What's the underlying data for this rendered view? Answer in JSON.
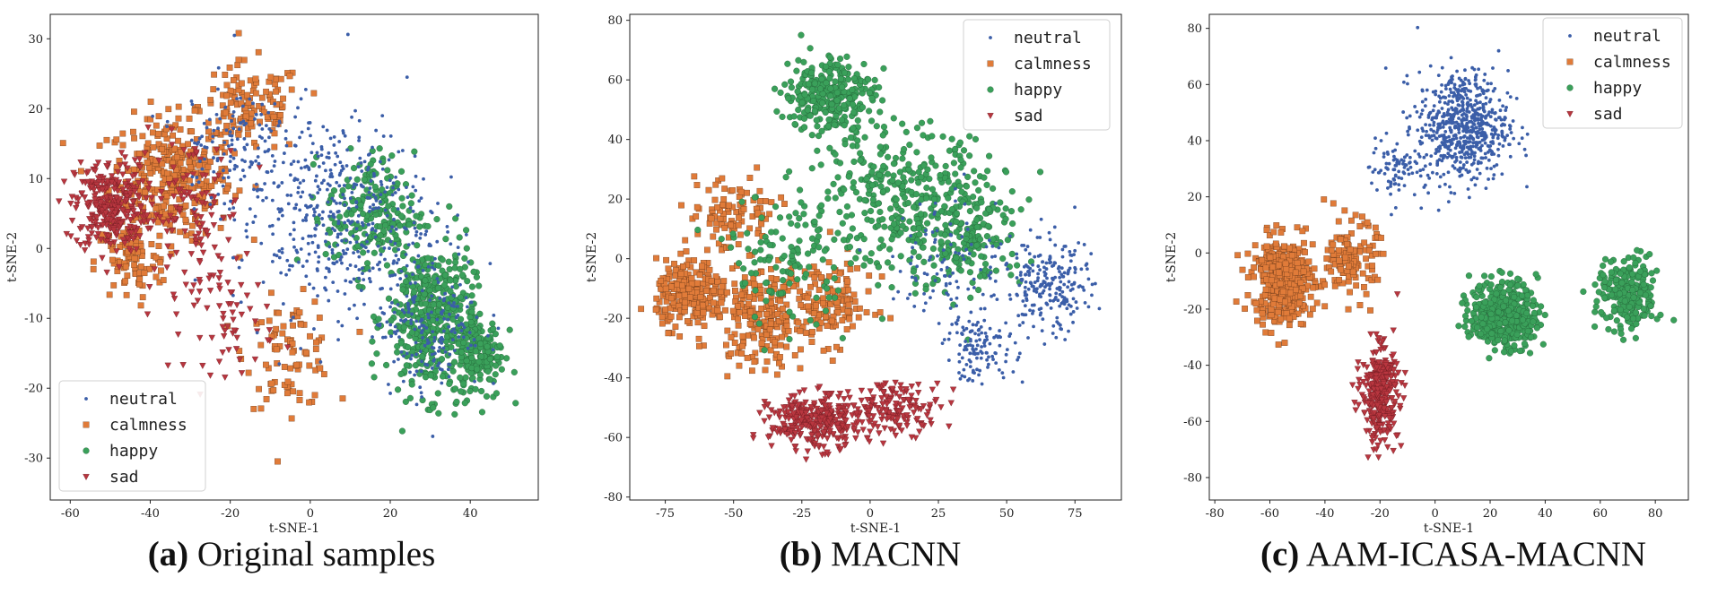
{
  "chart_data": [
    {
      "type": "scatter",
      "caption_prefix": "(a)",
      "caption_title": "Original samples",
      "xlabel": "t-SNE-1",
      "ylabel": "t-SNE-2",
      "xlim": [
        -65,
        57
      ],
      "ylim": [
        -36,
        33.5
      ],
      "xticks": [
        -60,
        -40,
        -20,
        0,
        20,
        40
      ],
      "yticks": [
        -30,
        -20,
        -10,
        0,
        10,
        20,
        30
      ],
      "legend_position": "lower-left",
      "series": [
        {
          "name": "neutral",
          "marker": "dot",
          "color": "#3b5ea8",
          "clusters": [
            [
              5,
              5,
              22,
              13,
              450
            ],
            [
              30,
              -10,
              12,
              10,
              200
            ],
            [
              -20,
              15,
              12,
              8,
              120
            ]
          ]
        },
        {
          "name": "calmness",
          "marker": "square",
          "color": "#e07b39",
          "clusters": [
            [
              -35,
              10,
              14,
              8,
              330
            ],
            [
              -15,
              20,
              12,
              6,
              130
            ],
            [
              -5,
              -15,
              10,
              7,
              90
            ],
            [
              -45,
              -2,
              8,
              5,
              80
            ]
          ]
        },
        {
          "name": "happy",
          "marker": "circle",
          "color": "#3aa05a",
          "clusters": [
            [
              30,
              -10,
              10,
              10,
              420
            ],
            [
              15,
              5,
              10,
              8,
              180
            ],
            [
              42,
              -15,
              6,
              6,
              160
            ]
          ]
        },
        {
          "name": "sad",
          "marker": "triangle",
          "color": "#b8363f",
          "clusters": [
            [
              -50,
              6,
              8,
              6,
              300
            ],
            [
              -30,
              5,
              12,
              10,
              120
            ],
            [
              -20,
              -10,
              10,
              7,
              60
            ]
          ]
        }
      ]
    },
    {
      "type": "scatter",
      "caption_prefix": "(b)",
      "caption_title": "MACNN",
      "xlabel": "t-SNE-1",
      "ylabel": "t-SNE-2",
      "xlim": [
        -88,
        92
      ],
      "ylim": [
        -81,
        82
      ],
      "xticks": [
        -75,
        -50,
        -25,
        0,
        25,
        50,
        75
      ],
      "yticks": [
        -80,
        -60,
        -40,
        -20,
        0,
        20,
        40,
        60,
        80
      ],
      "legend_position": "upper-right",
      "series": [
        {
          "name": "neutral",
          "marker": "dot",
          "color": "#3b5ea8",
          "clusters": [
            [
              65,
              -10,
              15,
              15,
              240
            ],
            [
              40,
              -30,
              12,
              10,
              120
            ],
            [
              30,
              0,
              20,
              20,
              100
            ]
          ]
        },
        {
          "name": "calmness",
          "marker": "square",
          "color": "#e07b39",
          "clusters": [
            [
              -65,
              -12,
              12,
              10,
              240
            ],
            [
              -40,
              -20,
              15,
              15,
              200
            ],
            [
              -15,
              -15,
              15,
              12,
              130
            ],
            [
              -50,
              15,
              15,
              12,
              100
            ]
          ]
        },
        {
          "name": "happy",
          "marker": "circle",
          "color": "#3aa05a",
          "clusters": [
            [
              -15,
              55,
              15,
              12,
              300
            ],
            [
              10,
              20,
              30,
              22,
              300
            ],
            [
              35,
              10,
              20,
              20,
              200
            ],
            [
              -30,
              0,
              20,
              20,
              120
            ]
          ]
        },
        {
          "name": "sad",
          "marker": "triangle",
          "color": "#b8363f",
          "clusters": [
            [
              -20,
              -55,
              15,
              8,
              320
            ],
            [
              10,
              -50,
              15,
              8,
              150
            ]
          ]
        }
      ]
    },
    {
      "type": "scatter",
      "caption_prefix": "(c)",
      "caption_title": "AAM-ICASA-MACNN",
      "xlabel": "t-SNE-1",
      "ylabel": "t-SNE-2",
      "xlim": [
        -82,
        92
      ],
      "ylim": [
        -88,
        85
      ],
      "xticks": [
        -80,
        -60,
        -40,
        -20,
        0,
        20,
        40,
        60,
        80
      ],
      "yticks": [
        -80,
        -60,
        -40,
        -20,
        0,
        20,
        40,
        60,
        80
      ],
      "legend_position": "upper-right",
      "series": [
        {
          "name": "neutral",
          "marker": "dot",
          "color": "#3b5ea8",
          "clusters": [
            [
              10,
              45,
              15,
              18,
              650
            ],
            [
              -15,
              30,
              8,
              10,
              80
            ]
          ]
        },
        {
          "name": "calmness",
          "marker": "square",
          "color": "#e07b39",
          "clusters": [
            [
              -55,
              -10,
              10,
              14,
              420
            ],
            [
              -30,
              -2,
              8,
              12,
              130
            ]
          ]
        },
        {
          "name": "happy",
          "marker": "circle",
          "color": "#3aa05a",
          "clusters": [
            [
              25,
              -22,
              11,
              11,
              420
            ],
            [
              70,
              -15,
              10,
              12,
              230
            ]
          ]
        },
        {
          "name": "sad",
          "marker": "triangle",
          "color": "#b8363f",
          "clusters": [
            [
              -20,
              -50,
              6,
              15,
              340
            ]
          ]
        }
      ]
    }
  ]
}
